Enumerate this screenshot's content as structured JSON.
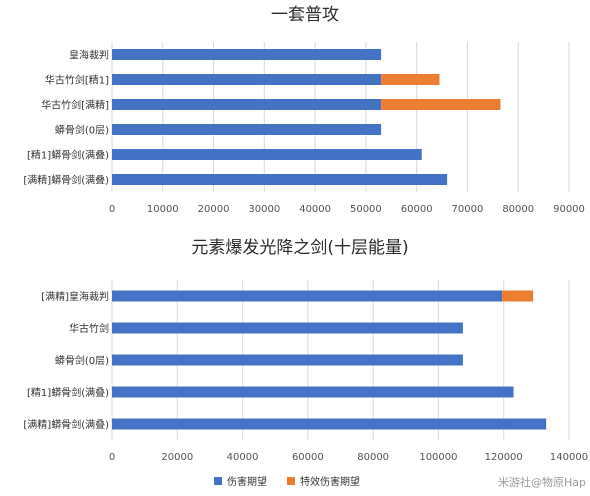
{
  "chart_data": [
    {
      "type": "bar",
      "orientation": "horizontal",
      "stacked": true,
      "title": "一套普攻",
      "categories": [
        "皇海裁判",
        "华古竹剑[精1]",
        "华古竹剑[满精]",
        "蟒骨剑(0层)",
        "[精1]蟒骨剑(满叠)",
        "[满精]蟒骨剑(满叠)"
      ],
      "series": [
        {
          "name": "伤害期望",
          "color": "#4472c4",
          "values": [
            53000,
            53000,
            53000,
            53000,
            61000,
            66000
          ]
        },
        {
          "name": "特效伤害期望",
          "color": "#ed7d31",
          "values": [
            0,
            11500,
            23500,
            0,
            0,
            0
          ]
        }
      ],
      "xlim": [
        0,
        90000
      ],
      "xticks": [
        0,
        10000,
        20000,
        30000,
        40000,
        50000,
        60000,
        70000,
        80000,
        90000
      ],
      "grid": true
    },
    {
      "type": "bar",
      "orientation": "horizontal",
      "stacked": true,
      "title": "元素爆发光降之剑(十层能量)",
      "categories": [
        "[满精]皇海裁判",
        "华古竹剑",
        "蟒骨剑(0层)",
        "[精1]蟒骨剑(满叠)",
        "[满精]蟒骨剑(满叠)"
      ],
      "series": [
        {
          "name": "伤害期望",
          "color": "#4472c4",
          "values": [
            119500,
            107500,
            107500,
            123000,
            133000
          ]
        },
        {
          "name": "特效伤害期望",
          "color": "#ed7d31",
          "values": [
            9500,
            0,
            0,
            0,
            0
          ]
        }
      ],
      "xlim": [
        0,
        140000
      ],
      "xticks": [
        0,
        20000,
        40000,
        60000,
        80000,
        100000,
        120000,
        140000
      ],
      "grid": true
    }
  ],
  "legend": {
    "position": "bottom",
    "items": [
      {
        "name": "伤害期望",
        "color": "#4472c4"
      },
      {
        "name": "特效伤害期望",
        "color": "#ed7d31"
      }
    ]
  },
  "watermark": "米游社@物原Hap"
}
